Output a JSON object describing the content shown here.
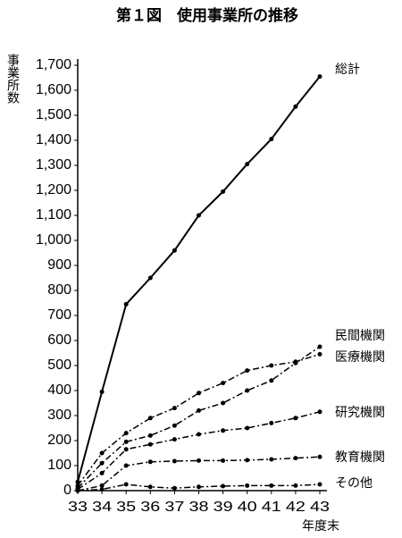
{
  "chart_data": {
    "type": "line",
    "title": "第１図　使用事業所の推移",
    "y_label": "事業所数",
    "x_label": "年度末",
    "x": [
      33,
      34,
      35,
      36,
      37,
      38,
      39,
      40,
      41,
      42,
      43
    ],
    "xlim": [
      33,
      43
    ],
    "xticks": [
      33,
      34,
      35,
      36,
      37,
      38,
      39,
      40,
      41,
      42,
      43
    ],
    "ylim": [
      0,
      1700
    ],
    "yticks": [
      0,
      100,
      200,
      300,
      400,
      500,
      600,
      700,
      800,
      900,
      {
        "value": 1000,
        "label": "1,000"
      },
      {
        "value": 1100,
        "label": "1,100"
      },
      {
        "value": 1200,
        "label": "1,200"
      },
      {
        "value": 1300,
        "label": "1,300"
      },
      {
        "value": 1400,
        "label": "1,400"
      },
      {
        "value": 1500,
        "label": "1,500"
      },
      {
        "value": 1600,
        "label": "1,600"
      },
      {
        "value": 1700,
        "label": "1,700"
      }
    ],
    "grid": false,
    "series": [
      {
        "name": "総計",
        "color": "#000000",
        "line_style": "solid",
        "values": [
          35,
          395,
          745,
          850,
          960,
          1100,
          1195,
          1305,
          1405,
          1535,
          1655
        ]
      },
      {
        "name": "民間機関",
        "color": "#000000",
        "line_style": "dashdot",
        "values": [
          10,
          110,
          195,
          220,
          260,
          320,
          350,
          400,
          440,
          510,
          575
        ]
      },
      {
        "name": "医療機関",
        "color": "#000000",
        "line_style": "dashdot",
        "values": [
          20,
          150,
          230,
          290,
          330,
          390,
          430,
          480,
          500,
          515,
          545
        ]
      },
      {
        "name": "研究機関",
        "color": "#000000",
        "line_style": "dashdot",
        "values": [
          5,
          70,
          165,
          185,
          205,
          225,
          240,
          250,
          270,
          290,
          315
        ]
      },
      {
        "name": "教育機関",
        "color": "#000000",
        "line_style": "dashdot",
        "values": [
          0,
          20,
          100,
          115,
          118,
          120,
          120,
          122,
          125,
          130,
          135
        ]
      },
      {
        "name": "その他",
        "color": "#000000",
        "line_style": "dashdot",
        "values": [
          0,
          5,
          25,
          15,
          10,
          15,
          18,
          20,
          20,
          20,
          25
        ]
      }
    ]
  }
}
